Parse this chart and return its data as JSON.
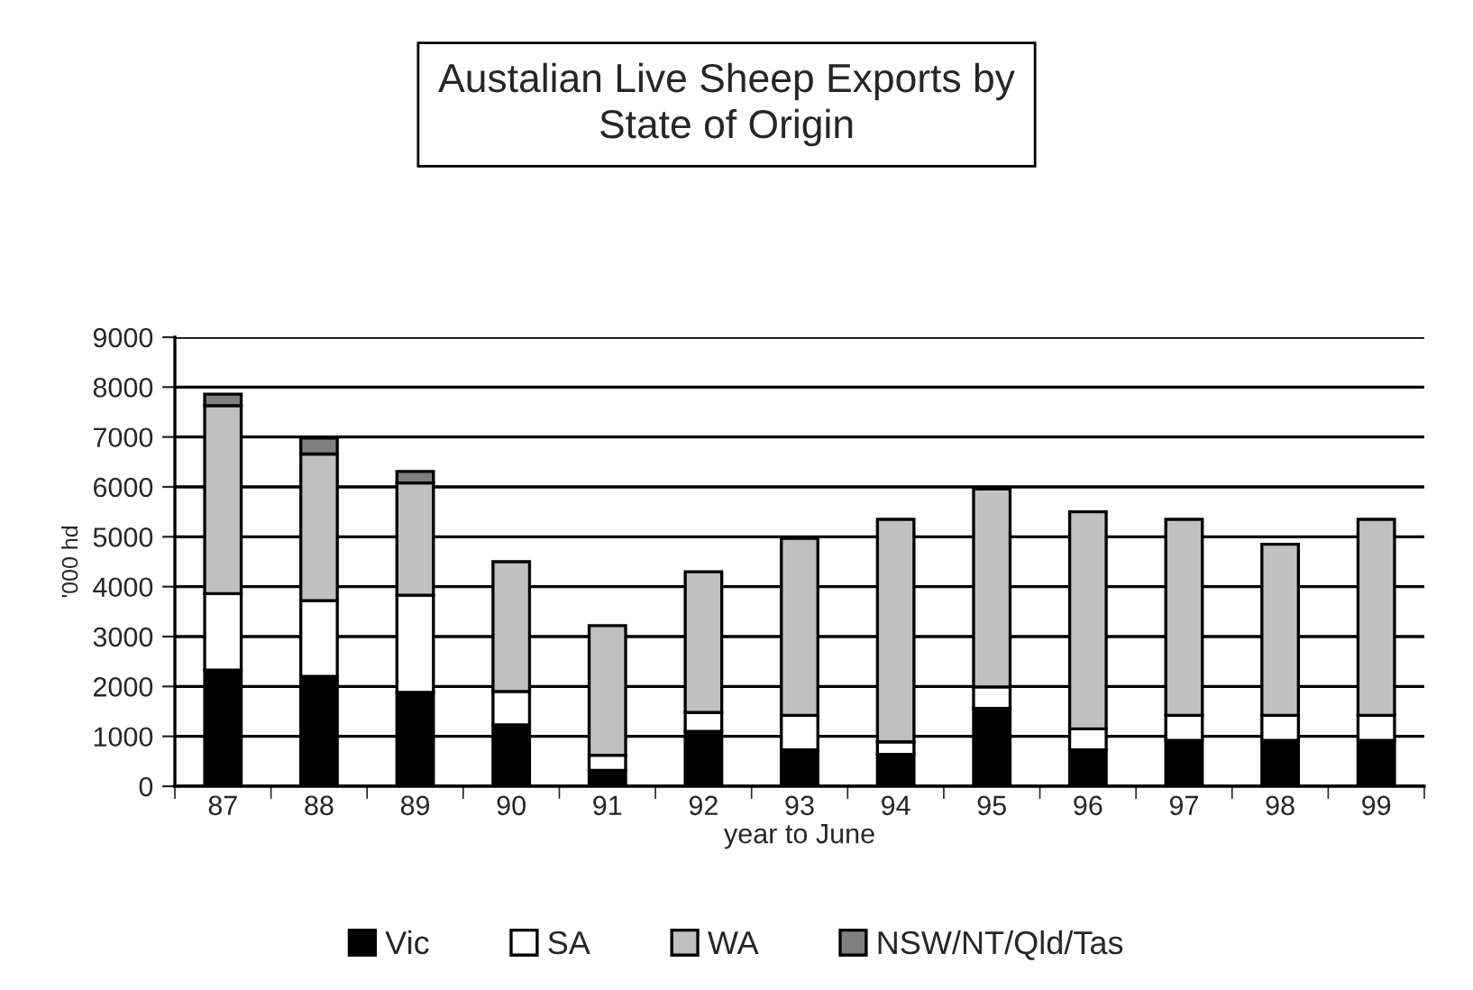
{
  "chart_data": {
    "type": "bar",
    "title": "Austalian Live Sheep Exports by\nState of Origin",
    "xlabel": "year to June",
    "ylabel": "'000 hd",
    "categories": [
      "87",
      "88",
      "89",
      "90",
      "91",
      "92",
      "93",
      "94",
      "95",
      "96",
      "97",
      "98",
      "99"
    ],
    "stacked": true,
    "ylim": [
      0,
      9000
    ],
    "yticks": [
      0,
      1000,
      2000,
      3000,
      4000,
      5000,
      6000,
      7000,
      8000,
      9000
    ],
    "grid": "y",
    "legend": "bottom",
    "series": [
      {
        "name": "Vic",
        "color": "#000000",
        "values": [
          2330,
          2200,
          1880,
          1230,
          320,
          1100,
          730,
          640,
          1560,
          730,
          920,
          920,
          920
        ]
      },
      {
        "name": "SA",
        "color": "#ffffff",
        "values": [
          1530,
          1520,
          1950,
          670,
          300,
          380,
          690,
          250,
          430,
          420,
          500,
          500,
          500
        ]
      },
      {
        "name": "WA",
        "color": "#c0c0c0",
        "values": [
          3770,
          2940,
          2250,
          2600,
          2600,
          2820,
          3550,
          4460,
          3970,
          4350,
          3930,
          3430,
          3930
        ]
      },
      {
        "name": "NSW/NT/Qld/Tas",
        "color": "#808080",
        "values": [
          230,
          320,
          230,
          null,
          null,
          null,
          null,
          null,
          null,
          null,
          null,
          null,
          null
        ]
      }
    ]
  }
}
